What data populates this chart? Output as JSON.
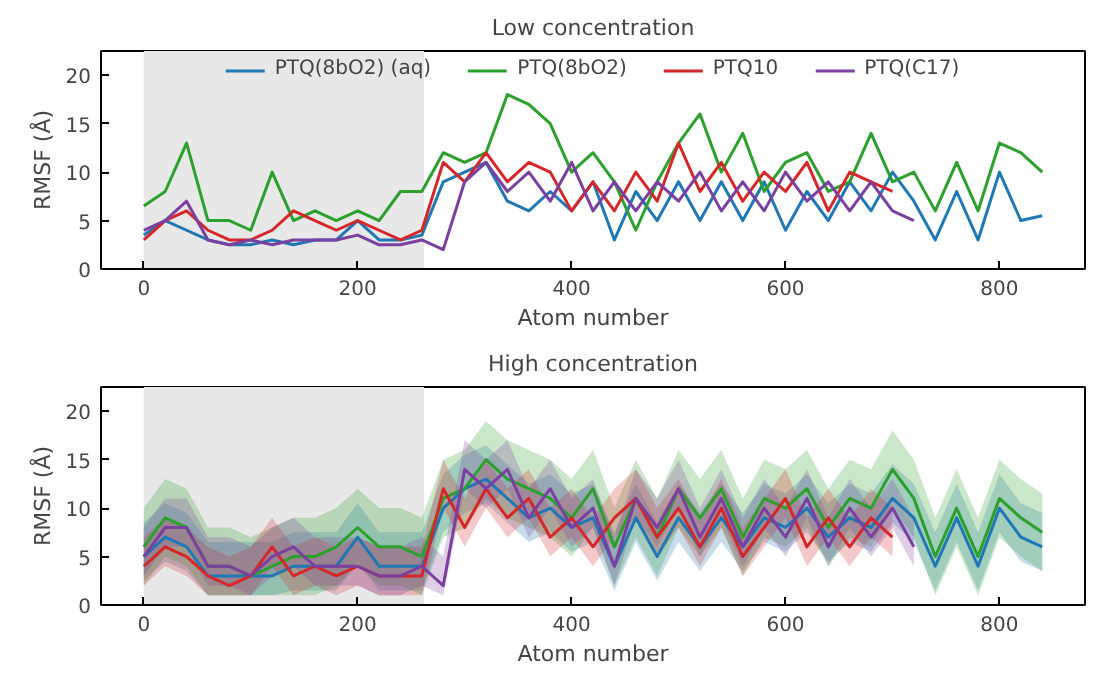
{
  "chart_data": [
    {
      "type": "line",
      "title": "Low concentration",
      "xlabel": "Atom number",
      "ylabel": "RMSF (Å)",
      "xlim": [
        -40,
        880
      ],
      "ylim": [
        0,
        22.5
      ],
      "xticks": [
        0,
        200,
        400,
        600,
        800
      ],
      "yticks": [
        0,
        5,
        10,
        15,
        20
      ],
      "grid": false,
      "legend": "top",
      "line_style": "solid",
      "bands": [
        {
          "axis": "x",
          "from": 0,
          "to": 262,
          "color": "#e8e8e8"
        }
      ],
      "series": [
        {
          "name": "PTQ(8bO2) (aq)",
          "color": "#1f77b4",
          "x": [
            0,
            20,
            40,
            60,
            80,
            100,
            120,
            140,
            160,
            180,
            200,
            220,
            240,
            260,
            280,
            300,
            320,
            340,
            360,
            380,
            400,
            420,
            440,
            460,
            480,
            500,
            520,
            540,
            560,
            580,
            600,
            620,
            640,
            660,
            680,
            700,
            720,
            740,
            760,
            780,
            800,
            820,
            840
          ],
          "values": [
            3.5,
            5,
            4,
            3,
            2.5,
            2.5,
            3,
            2.5,
            3,
            3,
            5,
            3,
            3,
            3.5,
            9,
            10,
            11,
            7,
            6,
            8,
            6,
            9,
            3,
            8,
            5,
            9,
            5,
            9,
            5,
            9,
            4,
            8,
            5,
            9,
            6,
            10,
            7,
            3,
            8,
            3,
            10,
            5,
            5.5
          ]
        },
        {
          "name": "PTQ(8bO2)",
          "color": "#2ca02c",
          "x": [
            0,
            20,
            40,
            60,
            80,
            100,
            120,
            140,
            160,
            180,
            200,
            220,
            240,
            260,
            280,
            300,
            320,
            340,
            360,
            380,
            400,
            420,
            440,
            460,
            480,
            500,
            520,
            540,
            560,
            580,
            600,
            620,
            640,
            660,
            680,
            700,
            720,
            740,
            760,
            780,
            800,
            820,
            840
          ],
          "values": [
            6.5,
            8,
            13,
            5,
            5,
            4,
            10,
            5,
            6,
            5,
            6,
            5,
            8,
            8,
            12,
            11,
            12,
            18,
            17,
            15,
            10,
            12,
            9,
            4,
            9,
            13,
            16,
            10,
            14,
            8,
            11,
            12,
            8,
            9,
            14,
            9,
            10,
            6,
            11,
            6,
            13,
            12,
            10
          ]
        },
        {
          "name": "PTQ10",
          "color": "#d62728",
          "x": [
            0,
            20,
            40,
            60,
            80,
            100,
            120,
            140,
            160,
            180,
            200,
            220,
            240,
            260,
            280,
            300,
            320,
            340,
            360,
            380,
            400,
            420,
            440,
            460,
            480,
            500,
            520,
            540,
            560,
            580,
            600,
            620,
            640,
            660,
            680,
            700
          ],
          "values": [
            3,
            5,
            6,
            4,
            3,
            3,
            4,
            6,
            5,
            4,
            5,
            4,
            3,
            4,
            11,
            9,
            12,
            9,
            11,
            10,
            6,
            9,
            6,
            10,
            7,
            13,
            8,
            11,
            7,
            10,
            8,
            11,
            6,
            10,
            9,
            8
          ]
        },
        {
          "name": "PTQ(C17)",
          "color": "#7b3fa0",
          "x": [
            0,
            20,
            40,
            60,
            80,
            100,
            120,
            140,
            160,
            180,
            200,
            220,
            240,
            260,
            280,
            300,
            320,
            340,
            360,
            380,
            400,
            420,
            440,
            460,
            480,
            500,
            520,
            540,
            560,
            580,
            600,
            620,
            640,
            660,
            680,
            700,
            720
          ],
          "values": [
            4,
            5,
            7,
            3,
            2.5,
            3,
            2.5,
            3,
            3,
            3,
            3.5,
            2.5,
            2.5,
            3,
            2,
            9,
            11,
            8,
            10,
            7,
            11,
            6,
            9,
            6,
            9,
            7,
            10,
            6,
            9,
            6,
            10,
            7,
            9,
            6,
            9,
            6,
            5
          ]
        }
      ]
    },
    {
      "type": "line",
      "title": "High concentration",
      "xlabel": "Atom number",
      "ylabel": "RMSF (Å)",
      "xlim": [
        -40,
        880
      ],
      "ylim": [
        0,
        22.5
      ],
      "xticks": [
        0,
        200,
        400,
        600,
        800
      ],
      "yticks": [
        0,
        5,
        10,
        15,
        20
      ],
      "grid": false,
      "line_style": "solid",
      "bands": [
        {
          "axis": "x",
          "from": 0,
          "to": 262,
          "color": "#e8e8e8"
        }
      ],
      "series": [
        {
          "color": "#1f77b4",
          "x": [
            0,
            20,
            40,
            60,
            80,
            100,
            120,
            140,
            160,
            180,
            200,
            220,
            240,
            260,
            280,
            300,
            320,
            340,
            360,
            380,
            400,
            420,
            440,
            460,
            480,
            500,
            520,
            540,
            560,
            580,
            600,
            620,
            640,
            660,
            680,
            700,
            720,
            740,
            760,
            780,
            800,
            820,
            840
          ],
          "values": [
            5,
            7,
            6,
            3,
            3,
            3,
            3,
            4,
            4,
            4,
            7,
            4,
            4,
            4,
            10,
            12,
            13,
            11,
            9,
            10,
            8,
            9,
            4,
            9,
            5,
            9,
            6,
            9,
            6,
            9,
            8,
            10,
            7,
            9,
            8,
            11,
            9,
            4,
            9,
            4,
            10,
            7,
            6
          ],
          "lower": [
            2.5,
            4.5,
            3.5,
            1,
            1,
            1,
            1,
            1.5,
            1.5,
            1.5,
            4.5,
            1.5,
            1.5,
            1.5,
            7.5,
            9.5,
            10.5,
            8.5,
            6.5,
            7.5,
            5.5,
            6.5,
            1.5,
            6.5,
            2.5,
            6.5,
            3.5,
            6.5,
            3.5,
            6.5,
            5.5,
            7.5,
            4.5,
            6.5,
            5.5,
            8.5,
            6.5,
            1.5,
            6.5,
            1.5,
            7.5,
            4.5,
            3.5
          ],
          "upper": [
            8.5,
            10.5,
            9.5,
            6.5,
            6.5,
            6.5,
            6.5,
            7.5,
            7.5,
            7.5,
            10.5,
            7.5,
            7.5,
            7.5,
            13.5,
            15.5,
            16.5,
            14.5,
            12.5,
            13.5,
            11.5,
            12.5,
            7.5,
            12.5,
            8.5,
            12.5,
            9.5,
            12.5,
            9.5,
            12.5,
            11.5,
            13.5,
            10.5,
            12.5,
            11.5,
            14.5,
            12.5,
            7.5,
            12.5,
            7.5,
            13.5,
            10.5,
            9.5
          ]
        },
        {
          "color": "#2ca02c",
          "x": [
            0,
            20,
            40,
            60,
            80,
            100,
            120,
            140,
            160,
            180,
            200,
            220,
            240,
            260,
            280,
            300,
            320,
            340,
            360,
            380,
            400,
            420,
            440,
            460,
            480,
            500,
            520,
            540,
            560,
            580,
            600,
            620,
            640,
            660,
            680,
            700,
            720,
            740,
            760,
            780,
            800,
            820,
            840
          ],
          "values": [
            6,
            9,
            8,
            4,
            4,
            3,
            4,
            5,
            5,
            6,
            8,
            6,
            6,
            5,
            11,
            12,
            15,
            13,
            12,
            11,
            9,
            12,
            6,
            11,
            7,
            12,
            9,
            12,
            7,
            11,
            10,
            12,
            8,
            11,
            10,
            14,
            11,
            5,
            10,
            5,
            11,
            9,
            7.5
          ],
          "lower": [
            2,
            5,
            4,
            1,
            1,
            1,
            1,
            1,
            1,
            2,
            4,
            2,
            2,
            1,
            7,
            8,
            11,
            9,
            8,
            7,
            5,
            8,
            2,
            7,
            3,
            8,
            5,
            8,
            3,
            7,
            6,
            8,
            4,
            7,
            6,
            10,
            7,
            1,
            6,
            1,
            7,
            5,
            3.5
          ],
          "upper": [
            10,
            13,
            12,
            8,
            8,
            7,
            8,
            9,
            9,
            10,
            12,
            10,
            10,
            9,
            15,
            16,
            19,
            17,
            16,
            15,
            13,
            16,
            10,
            15,
            11,
            16,
            13,
            16,
            11,
            15,
            14,
            16,
            12,
            15,
            14,
            18,
            15,
            9,
            14,
            9,
            15,
            13,
            11.5
          ]
        },
        {
          "color": "#d62728",
          "x": [
            0,
            20,
            40,
            60,
            80,
            100,
            120,
            140,
            160,
            180,
            200,
            220,
            240,
            260,
            280,
            300,
            320,
            340,
            360,
            380,
            400,
            420,
            440,
            460,
            480,
            500,
            520,
            540,
            560,
            580,
            600,
            620,
            640,
            660,
            680,
            700
          ],
          "values": [
            4,
            6,
            5,
            3,
            2,
            3,
            6,
            3,
            4,
            3,
            4,
            3,
            3,
            3,
            12,
            8,
            12,
            9,
            11,
            7,
            9,
            6,
            9,
            11,
            7,
            10,
            6,
            10,
            5,
            8,
            11,
            6,
            9,
            6,
            9,
            7
          ],
          "lower": [
            2,
            4,
            3,
            1,
            1,
            1,
            4,
            1,
            2,
            1,
            2,
            1,
            1,
            1,
            10,
            6,
            10,
            7,
            9,
            5,
            7,
            4,
            7,
            9,
            5,
            8,
            4,
            8,
            3,
            6,
            9,
            4,
            7,
            4,
            7,
            5
          ],
          "upper": [
            7,
            9,
            8,
            6,
            5,
            6,
            9,
            6,
            7,
            6,
            7,
            6,
            6,
            6,
            15,
            11,
            15,
            12,
            14,
            10,
            12,
            9,
            12,
            14,
            10,
            13,
            9,
            13,
            8,
            11,
            14,
            9,
            12,
            9,
            12,
            10
          ]
        },
        {
          "color": "#7b3fa0",
          "x": [
            0,
            20,
            40,
            60,
            80,
            100,
            120,
            140,
            160,
            180,
            200,
            220,
            240,
            260,
            280,
            300,
            320,
            340,
            360,
            380,
            400,
            420,
            440,
            460,
            480,
            500,
            520,
            540,
            560,
            580,
            600,
            620,
            640,
            660,
            680,
            700,
            720
          ],
          "values": [
            5,
            8,
            8,
            4,
            4,
            3,
            5,
            6,
            4,
            4,
            4,
            3,
            3,
            4,
            2,
            14,
            12,
            14,
            9,
            12,
            8,
            10,
            4,
            11,
            8,
            12,
            7,
            11,
            6,
            10,
            7,
            11,
            6,
            10,
            7,
            10,
            6
          ],
          "lower": [
            3,
            6,
            6,
            2,
            2,
            1,
            3,
            4,
            2,
            2,
            2,
            1,
            1,
            2,
            1,
            12,
            10,
            12,
            7,
            10,
            6,
            8,
            2,
            9,
            6,
            10,
            5,
            9,
            4,
            8,
            5,
            9,
            4,
            8,
            5,
            8,
            4
          ],
          "upper": [
            8,
            11,
            11,
            7,
            7,
            6,
            8,
            9,
            7,
            7,
            7,
            6,
            6,
            7,
            5,
            17,
            15,
            17,
            12,
            15,
            11,
            13,
            7,
            14,
            11,
            15,
            10,
            14,
            9,
            13,
            10,
            14,
            9,
            13,
            10,
            13,
            9
          ]
        }
      ]
    }
  ]
}
